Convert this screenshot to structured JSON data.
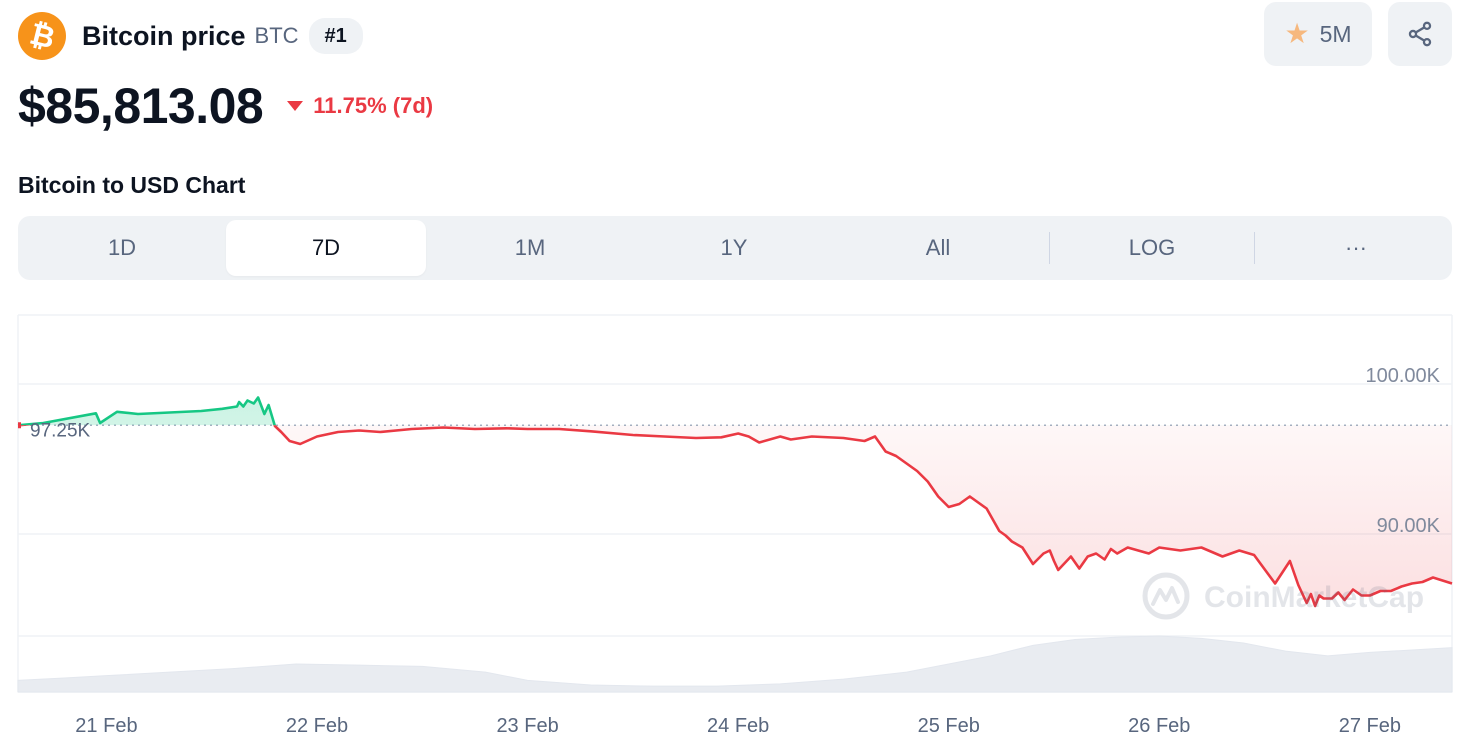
{
  "header": {
    "logo_glyph": "₿",
    "logo_icon": "bitcoin-logo-icon",
    "name": "Bitcoin price",
    "symbol": "BTC",
    "rank": "#1"
  },
  "actions": {
    "watchlist_count": "5M",
    "star_icon": "star-icon",
    "share_icon": "share-icon"
  },
  "price": {
    "value": "$85,813.08",
    "change": "11.75% (7d)",
    "change_direction": "down",
    "change_color": "#ea3943"
  },
  "chart_title": "Bitcoin to USD Chart",
  "tabs": [
    {
      "label": "1D",
      "active": false
    },
    {
      "label": "7D",
      "active": true
    },
    {
      "label": "1M",
      "active": false
    },
    {
      "label": "1Y",
      "active": false
    },
    {
      "label": "All",
      "active": false
    },
    {
      "label": "LOG",
      "active": false
    },
    {
      "label": "···",
      "active": false
    }
  ],
  "watermark": "CoinMarketCap",
  "chart_data": {
    "type": "line",
    "title": "",
    "baseline_label": "97.25K",
    "baseline": 97250,
    "ylim": [
      83200,
      104600
    ],
    "yticks": [
      {
        "value": 100000,
        "label": "100.00K"
      },
      {
        "value": 90000,
        "label": "90.00K"
      }
    ],
    "xlim": [
      20.58,
      27.39
    ],
    "xticks": [
      {
        "value": 21,
        "label": "21 Feb"
      },
      {
        "value": 22,
        "label": "22 Feb"
      },
      {
        "value": 23,
        "label": "23 Feb"
      },
      {
        "value": 24,
        "label": "24 Feb"
      },
      {
        "value": 25,
        "label": "25 Feb"
      },
      {
        "value": 26,
        "label": "26 Feb"
      },
      {
        "value": 27,
        "label": "27 Feb"
      }
    ],
    "x_unit": "day of February 2025",
    "up_color": "#16c784",
    "down_color": "#ea3943",
    "grid": true,
    "series": [
      {
        "x": [
          20.58,
          20.7,
          20.95,
          20.97,
          21.05,
          21.15,
          21.3,
          21.45,
          21.55,
          21.62,
          21.63,
          21.65,
          21.67,
          21.7,
          21.72,
          21.75,
          21.77,
          21.8,
          21.83,
          21.87,
          21.92,
          22.0,
          22.1,
          22.2,
          22.3,
          22.45,
          22.6,
          22.75,
          22.9,
          23.0,
          23.15,
          23.3,
          23.5,
          23.65,
          23.8,
          23.92,
          24.0,
          24.05,
          24.1,
          24.2,
          24.25,
          24.35,
          24.5,
          24.6,
          24.65,
          24.7,
          24.75,
          24.8,
          24.85,
          24.9,
          24.95,
          25.0,
          25.05,
          25.1,
          25.18,
          25.24,
          25.27,
          25.3,
          25.35,
          25.4,
          25.45,
          25.48,
          25.5,
          25.52,
          25.58,
          25.62,
          25.66,
          25.7,
          25.74,
          25.77,
          25.8,
          25.85,
          25.9,
          25.95,
          26.0,
          26.05,
          26.1,
          26.2,
          26.3,
          26.38,
          26.45,
          26.55,
          26.62,
          26.66,
          26.7,
          26.72,
          26.74,
          26.76,
          26.78,
          26.82,
          26.85,
          26.88,
          26.92,
          26.96,
          27.0,
          27.05,
          27.1,
          27.15,
          27.2,
          27.25,
          27.3,
          27.39
        ],
        "y": [
          97250,
          97400,
          98050,
          97400,
          98150,
          98000,
          98100,
          98200,
          98350,
          98500,
          98800,
          98500,
          98900,
          98700,
          99100,
          98000,
          98600,
          97200,
          96800,
          96200,
          96000,
          96500,
          96800,
          96900,
          96800,
          97000,
          97100,
          97000,
          97050,
          97000,
          97000,
          96850,
          96600,
          96500,
          96400,
          96450,
          96700,
          96500,
          96100,
          96500,
          96300,
          96500,
          96400,
          96200,
          96500,
          95500,
          95200,
          94700,
          94200,
          93500,
          92500,
          91800,
          92000,
          92500,
          91700,
          90200,
          89900,
          89500,
          89100,
          88000,
          88700,
          88900,
          88200,
          87600,
          88500,
          87700,
          88500,
          88700,
          88300,
          89000,
          88700,
          89100,
          88900,
          88700,
          89100,
          89000,
          88900,
          89100,
          88500,
          88900,
          88600,
          86700,
          88200,
          86600,
          85400,
          86000,
          85200,
          85900,
          85700,
          85700,
          86100,
          85600,
          86300,
          85900,
          85900,
          86200,
          86200,
          86500,
          86700,
          86800,
          87100,
          86700
        ]
      }
    ],
    "volume": {
      "x": [
        20.58,
        20.8,
        21.0,
        21.3,
        21.6,
        21.9,
        22.2,
        22.5,
        22.8,
        23.0,
        23.3,
        23.6,
        23.9,
        24.2,
        24.5,
        24.8,
        25.0,
        25.2,
        25.4,
        25.6,
        25.8,
        26.0,
        26.2,
        26.4,
        26.6,
        26.8,
        27.0,
        27.2,
        27.39
      ],
      "y": [
        10,
        12,
        14,
        17,
        20,
        24,
        23,
        22,
        17,
        10,
        6,
        5,
        5,
        7,
        11,
        17,
        24,
        31,
        40,
        45,
        47,
        48,
        46,
        42,
        35,
        31,
        34,
        36,
        38
      ]
    }
  }
}
